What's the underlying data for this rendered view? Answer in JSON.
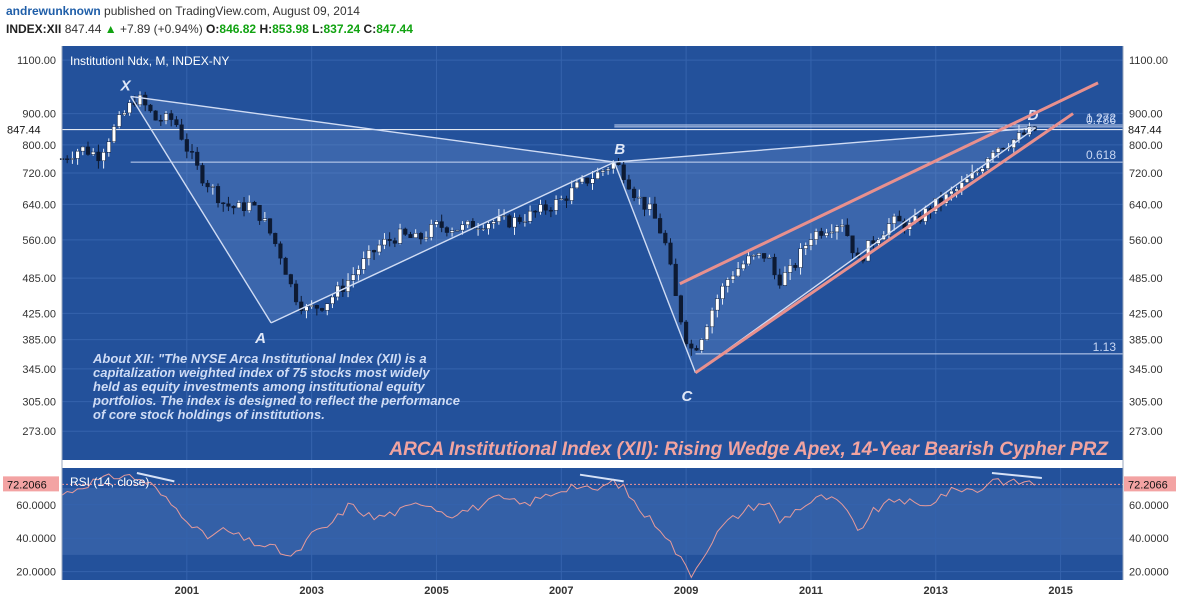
{
  "header": {
    "author": "andrewunknown",
    "published": "published on TradingView.com, August 09, 2014",
    "symbol": "INDEX:XII",
    "last": "847.44",
    "up_arrow": "▲",
    "change": "+7.89 (+0.94%)",
    "o_label": "O:",
    "o_value": "846.82",
    "h_label": "H:",
    "h_value": "853.98",
    "l_label": "L:",
    "l_value": "837.24",
    "c_label": "C:",
    "c_value": "847.44"
  },
  "colors": {
    "background": "#23519b",
    "wedge": "#e8908e",
    "pattern_line": "#d0dcf4",
    "rsi_line": "#e69a9a",
    "title": "#f2a4a0"
  },
  "chart_data": [
    {
      "type": "candlestick",
      "title": "Institutionl Ndx, M, INDEX-NY",
      "overlay_title": "ARCA Institutional Index (XII): Rising Wedge Apex, 14-Year Bearish Cypher PRZ",
      "price_scale": "log",
      "y_ticks": [
        1100,
        900,
        800,
        720,
        640,
        560,
        485,
        425,
        385,
        345,
        305,
        273
      ],
      "y_tick_labels": [
        "1100.00",
        "900.00",
        "800.00",
        "720.00",
        "640.00",
        "560.00",
        "485.00",
        "425.00",
        "385.00",
        "345.00",
        "305.00",
        "273.00"
      ],
      "ylim": [
        245,
        1160
      ],
      "x_range": [
        1999.0,
        2016.0
      ],
      "x_ticks": [
        2001,
        2003,
        2005,
        2007,
        2009,
        2011,
        2013,
        2015
      ],
      "x_tick_labels": [
        "2001",
        "2003",
        "2005",
        "2007",
        "2009",
        "2011",
        "2013",
        "2015"
      ],
      "last_price_label": "847.44",
      "last_price": 847.44,
      "candle_anchors": [
        [
          1999.0,
          760
        ],
        [
          1999.3,
          790
        ],
        [
          1999.6,
          770
        ],
        [
          1999.8,
          840
        ],
        [
          2000.0,
          900
        ],
        [
          2000.2,
          960
        ],
        [
          2000.5,
          880
        ],
        [
          2000.8,
          880
        ],
        [
          2001.0,
          790
        ],
        [
          2001.2,
          720
        ],
        [
          2001.4,
          680
        ],
        [
          2001.6,
          640
        ],
        [
          2001.8,
          630
        ],
        [
          2002.0,
          640
        ],
        [
          2002.2,
          610
        ],
        [
          2002.5,
          530
        ],
        [
          2002.7,
          460
        ],
        [
          2002.9,
          430
        ],
        [
          2003.2,
          440
        ],
        [
          2003.5,
          470
        ],
        [
          2003.8,
          510
        ],
        [
          2004.1,
          550
        ],
        [
          2004.4,
          570
        ],
        [
          2004.7,
          560
        ],
        [
          2005.0,
          590
        ],
        [
          2005.4,
          585
        ],
        [
          2005.8,
          600
        ],
        [
          2006.2,
          600
        ],
        [
          2006.6,
          620
        ],
        [
          2007.0,
          650
        ],
        [
          2007.3,
          690
        ],
        [
          2007.6,
          720
        ],
        [
          2007.85,
          750
        ],
        [
          2008.0,
          720
        ],
        [
          2008.2,
          660
        ],
        [
          2008.45,
          620
        ],
        [
          2008.65,
          560
        ],
        [
          2008.85,
          440
        ],
        [
          2009.05,
          370
        ],
        [
          2009.2,
          380
        ],
        [
          2009.45,
          440
        ],
        [
          2009.7,
          490
        ],
        [
          2010.0,
          520
        ],
        [
          2010.3,
          530
        ],
        [
          2010.45,
          480
        ],
        [
          2010.7,
          500
        ],
        [
          2011.0,
          570
        ],
        [
          2011.3,
          590
        ],
        [
          2011.5,
          600
        ],
        [
          2011.75,
          515
        ],
        [
          2012.0,
          560
        ],
        [
          2012.3,
          600
        ],
        [
          2012.6,
          590
        ],
        [
          2012.9,
          630
        ],
        [
          2013.2,
          660
        ],
        [
          2013.45,
          690
        ],
        [
          2013.7,
          730
        ],
        [
          2013.9,
          790
        ],
        [
          2014.2,
          810
        ],
        [
          2014.45,
          835
        ],
        [
          2014.6,
          847.44
        ]
      ],
      "rsi": {
        "label": "RSI (14, close)",
        "current_label": "72.2066",
        "current": 72.2066,
        "y_ticks": [
          60,
          40,
          20
        ],
        "y_tick_labels": [
          "60.0000",
          "40.0000",
          "20.0000"
        ],
        "ylim": [
          15,
          82
        ],
        "overbought": 70,
        "oversold": 30,
        "anchors": [
          [
            1999.0,
            66
          ],
          [
            1999.5,
            74
          ],
          [
            2000.0,
            78
          ],
          [
            2000.4,
            73
          ],
          [
            2000.7,
            62
          ],
          [
            2001.0,
            52
          ],
          [
            2001.3,
            40
          ],
          [
            2001.6,
            45
          ],
          [
            2002.0,
            38
          ],
          [
            2002.4,
            34
          ],
          [
            2002.7,
            28
          ],
          [
            2003.0,
            42
          ],
          [
            2003.3,
            48
          ],
          [
            2003.6,
            60
          ],
          [
            2004.0,
            52
          ],
          [
            2004.4,
            56
          ],
          [
            2004.8,
            62
          ],
          [
            2005.2,
            54
          ],
          [
            2005.6,
            58
          ],
          [
            2006.0,
            64
          ],
          [
            2006.4,
            60
          ],
          [
            2006.8,
            66
          ],
          [
            2007.2,
            72
          ],
          [
            2007.5,
            68
          ],
          [
            2007.85,
            74
          ],
          [
            2008.0,
            70
          ],
          [
            2008.3,
            55
          ],
          [
            2008.6,
            46
          ],
          [
            2008.9,
            28
          ],
          [
            2009.1,
            18
          ],
          [
            2009.3,
            32
          ],
          [
            2009.6,
            48
          ],
          [
            2010.0,
            58
          ],
          [
            2010.3,
            62
          ],
          [
            2010.5,
            50
          ],
          [
            2010.8,
            58
          ],
          [
            2011.2,
            65
          ],
          [
            2011.5,
            60
          ],
          [
            2011.75,
            44
          ],
          [
            2012.0,
            56
          ],
          [
            2012.4,
            64
          ],
          [
            2012.8,
            58
          ],
          [
            2013.1,
            66
          ],
          [
            2013.4,
            70
          ],
          [
            2013.7,
            68
          ],
          [
            2013.9,
            76
          ],
          [
            2014.2,
            73
          ],
          [
            2014.45,
            74
          ],
          [
            2014.6,
            72.2066
          ]
        ]
      },
      "pattern_points": [
        {
          "label": "X",
          "x": 2000.1,
          "y": 960
        },
        {
          "label": "A",
          "x": 2002.35,
          "y": 410
        },
        {
          "label": "B",
          "x": 2007.85,
          "y": 750
        },
        {
          "label": "C",
          "x": 2009.15,
          "y": 340
        },
        {
          "label": "D",
          "x": 2014.6,
          "y": 853
        }
      ],
      "levels": [
        {
          "label": "1.272",
          "value": 862,
          "x_start": 2007.85
        },
        {
          "label": "0.786",
          "value": 856,
          "x_start": 2007.85
        },
        {
          "label": "0.618",
          "value": 750,
          "x_start": 2000.1
        },
        {
          "label": "1.13",
          "value": 365,
          "x_start": 2009.15
        }
      ],
      "wedge": {
        "upper": [
          [
            2008.9,
            475
          ],
          [
            2015.6,
            1010
          ]
        ],
        "lower": [
          [
            2009.15,
            340
          ],
          [
            2015.2,
            900
          ]
        ]
      },
      "rsi_divergences": [
        [
          [
            2000.2,
            79
          ],
          [
            2000.8,
            74
          ]
        ],
        [
          [
            2007.3,
            78
          ],
          [
            2008.0,
            74
          ]
        ],
        [
          [
            2013.9,
            79
          ],
          [
            2014.7,
            76
          ]
        ]
      ],
      "annotation": {
        "line1": "About XII: \"The NYSE Arca Institutional Index (XII) is a",
        "line2": "capitalization weighted index of 75 stocks most widely",
        "line3": "held as equity investments among institutional equity",
        "line4": "portfolios. The index is designed to reflect the performance",
        "line5": "of core stock holdings of institutions."
      }
    }
  ]
}
